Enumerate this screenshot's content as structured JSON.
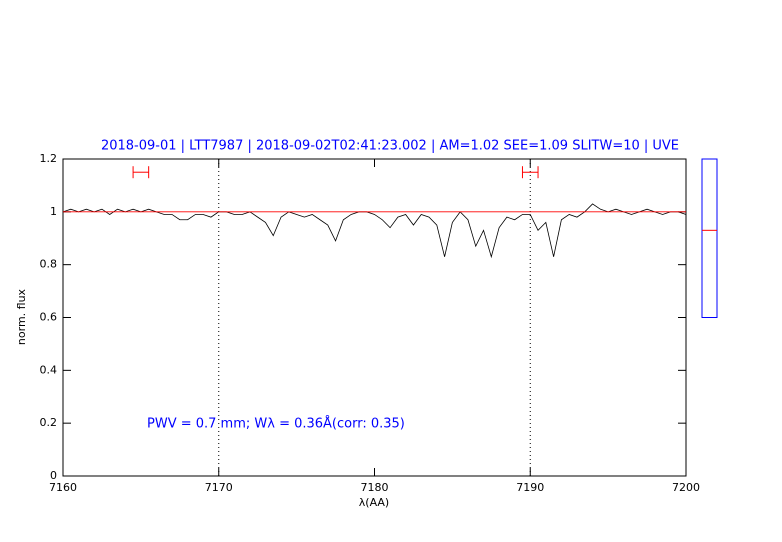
{
  "chart_data": {
    "type": "line",
    "title": "2018-09-01 | LTT7987 | 2018-09-02T02:41:23.002 | AM=1.02 SEE=1.09 SLITW=10 | UVE",
    "x_label": "λ(AA)",
    "y_label": "norm. flux",
    "annotation": "PWV = 0.7 mm; Wλ = 0.36Å(corr: 0.35)",
    "xlim": [
      7160,
      7200
    ],
    "xticks": [
      7160,
      7170,
      7180,
      7190,
      7200
    ],
    "ylim": [
      0,
      1.2
    ],
    "yticks": [
      0,
      0.2,
      0.4,
      0.6,
      0.8,
      1,
      1.2
    ],
    "reference_lines": [
      7170,
      7190
    ],
    "continuum": {
      "value": 1,
      "color": "#ff0000"
    },
    "ranges": {
      "color": "#ff0000",
      "y": 1.15,
      "spans": [
        [
          7164.5,
          7165.5
        ],
        [
          7189.5,
          7190.5
        ]
      ]
    },
    "side_bar": {
      "ylim": [
        0.6,
        1.2
      ],
      "value": 0.93,
      "color": "#0000ff",
      "marker_color": "#ff0000"
    },
    "x": [
      7160,
      7160.5,
      7161,
      7161.5,
      7162,
      7162.5,
      7163,
      7163.5,
      7164,
      7164.5,
      7165,
      7165.5,
      7166,
      7166.5,
      7167,
      7167.5,
      7168,
      7168.5,
      7169,
      7169.5,
      7170,
      7170.5,
      7171,
      7171.5,
      7172,
      7172.5,
      7173,
      7173.5,
      7174,
      7174.5,
      7175,
      7175.5,
      7176,
      7176.5,
      7177,
      7177.5,
      7178,
      7178.5,
      7179,
      7179.5,
      7180,
      7180.5,
      7181,
      7181.5,
      7182,
      7182.5,
      7183,
      7183.5,
      7184,
      7184.5,
      7185,
      7185.5,
      7186,
      7186.5,
      7187,
      7187.5,
      7188,
      7188.5,
      7189,
      7189.5,
      7190,
      7190.5,
      7191,
      7191.5,
      7192,
      7192.5,
      7193,
      7193.5,
      7194,
      7194.5,
      7195,
      7195.5,
      7196,
      7196.5,
      7197,
      7197.5,
      7198,
      7198.5,
      7199,
      7199.5,
      7200
    ],
    "series": [
      {
        "color": "#000000",
        "values": [
          1.0,
          1.01,
          1.0,
          1.01,
          1.0,
          1.01,
          0.99,
          1.01,
          1.0,
          1.01,
          1.0,
          1.01,
          1.0,
          0.99,
          0.99,
          0.97,
          0.97,
          0.99,
          0.99,
          0.98,
          1.0,
          1.0,
          0.99,
          0.99,
          1.0,
          0.98,
          0.96,
          0.91,
          0.98,
          1.0,
          0.99,
          0.98,
          0.99,
          0.97,
          0.95,
          0.89,
          0.97,
          0.99,
          1.0,
          1.0,
          0.99,
          0.97,
          0.94,
          0.98,
          0.99,
          0.95,
          0.99,
          0.98,
          0.95,
          0.83,
          0.96,
          1.0,
          0.97,
          0.87,
          0.93,
          0.83,
          0.94,
          0.98,
          0.97,
          0.99,
          0.99,
          0.93,
          0.96,
          0.83,
          0.97,
          0.99,
          0.98,
          1.0,
          1.03,
          1.01,
          1.0,
          1.01,
          1.0,
          0.99,
          1.0,
          1.01,
          1.0,
          0.99,
          1.0,
          1.0,
          0.99
        ]
      }
    ]
  }
}
